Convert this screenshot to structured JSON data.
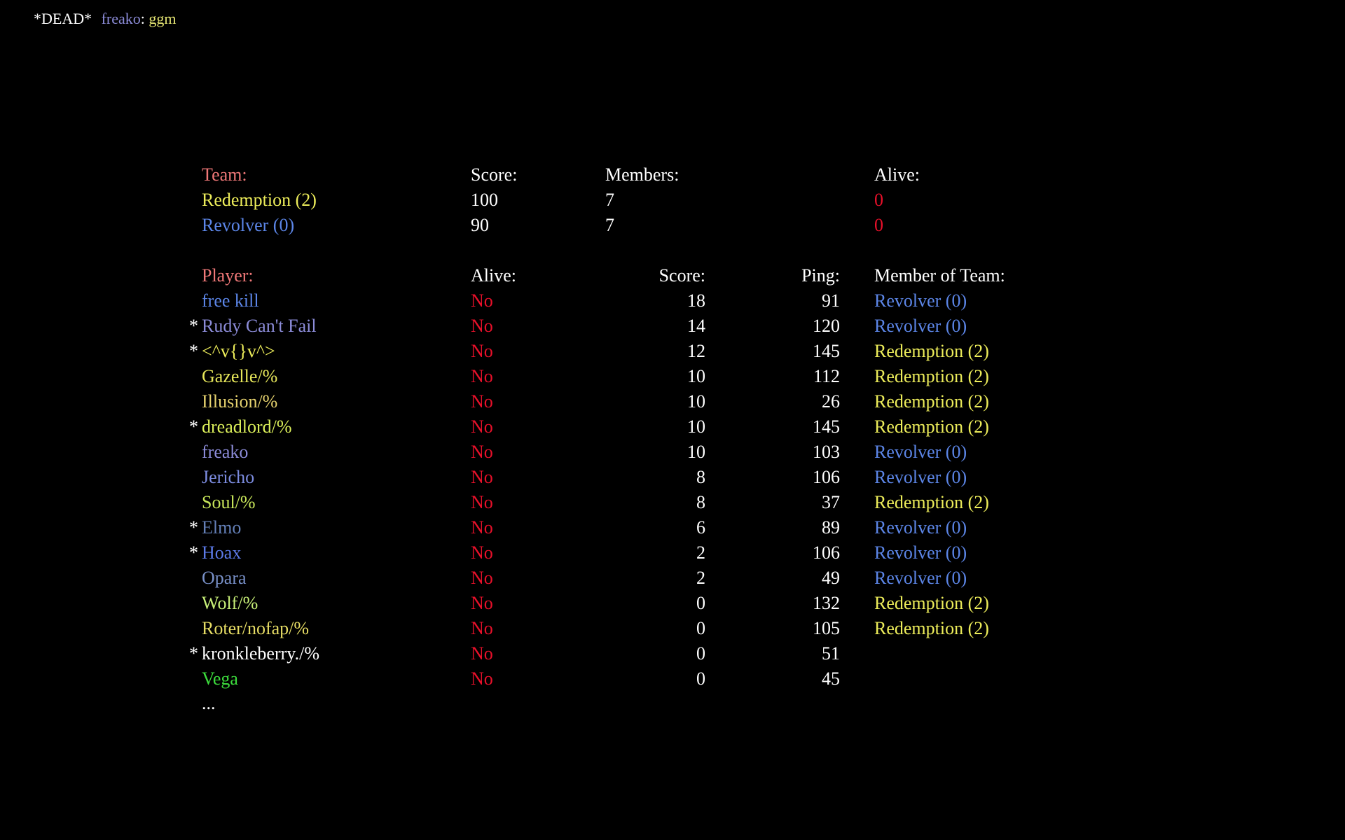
{
  "chat": {
    "status": "*DEAD*",
    "author": "freako",
    "separator": ":",
    "message": "ggm"
  },
  "colors": {
    "background": "#000000",
    "header_accent": "#f07878",
    "dead_red": "#e8102a",
    "team_redemption": "#eded5a",
    "team_revolver": "#5c86e8"
  },
  "team_table": {
    "headers": {
      "team": "Team:",
      "score": "Score:",
      "members": "Members:",
      "alive": "Alive:"
    },
    "rows": [
      {
        "name": "Redemption (2)",
        "score": "100",
        "members": "7",
        "alive": "0",
        "color": "#eded5a"
      },
      {
        "name": "Revolver (0)",
        "score": "90",
        "members": "7",
        "alive": "0",
        "color": "#5c86e8"
      }
    ]
  },
  "player_table": {
    "headers": {
      "player": "Player:",
      "alive": "Alive:",
      "score": "Score:",
      "ping": "Ping:",
      "team": "Member of Team:"
    },
    "rows": [
      {
        "mark": "",
        "name": "free kill",
        "name_color": "#5c86e8",
        "alive": "No",
        "score": "18",
        "ping": "91",
        "team": "Revolver (0)",
        "team_color": "#5c86e8"
      },
      {
        "mark": "*",
        "name": "Rudy Can't Fail",
        "name_color": "#8c8cd9",
        "alive": "No",
        "score": "14",
        "ping": "120",
        "team": "Revolver (0)",
        "team_color": "#5c86e8"
      },
      {
        "mark": "*",
        "name": "<^v{}v^>",
        "name_color": "#eded5a",
        "alive": "No",
        "score": "12",
        "ping": "145",
        "team": "Redemption (2)",
        "team_color": "#eded5a"
      },
      {
        "mark": "",
        "name": "Gazelle/%",
        "name_color": "#e6e65a",
        "alive": "No",
        "score": "10",
        "ping": "112",
        "team": "Redemption (2)",
        "team_color": "#eded5a"
      },
      {
        "mark": "",
        "name": "Illusion/%",
        "name_color": "#e6d26e",
        "alive": "No",
        "score": "10",
        "ping": "26",
        "team": "Redemption (2)",
        "team_color": "#eded5a"
      },
      {
        "mark": "*",
        "name": "dreadlord/%",
        "name_color": "#dcf05a",
        "alive": "No",
        "score": "10",
        "ping": "145",
        "team": "Redemption (2)",
        "team_color": "#eded5a"
      },
      {
        "mark": "",
        "name": "freako",
        "name_color": "#8c8cd9",
        "alive": "No",
        "score": "10",
        "ping": "103",
        "team": "Revolver (0)",
        "team_color": "#5c86e8"
      },
      {
        "mark": "",
        "name": "Jericho",
        "name_color": "#7c8ce0",
        "alive": "No",
        "score": "8",
        "ping": "106",
        "team": "Revolver (0)",
        "team_color": "#5c86e8"
      },
      {
        "mark": "",
        "name": "Soul/%",
        "name_color": "#c8e65a",
        "alive": "No",
        "score": "8",
        "ping": "37",
        "team": "Redemption (2)",
        "team_color": "#eded5a"
      },
      {
        "mark": "*",
        "name": "Elmo",
        "name_color": "#6480b8",
        "alive": "No",
        "score": "6",
        "ping": "89",
        "team": "Revolver (0)",
        "team_color": "#5c86e8"
      },
      {
        "mark": "*",
        "name": "Hoax",
        "name_color": "#5c7ae8",
        "alive": "No",
        "score": "2",
        "ping": "106",
        "team": "Revolver (0)",
        "team_color": "#5c86e8"
      },
      {
        "mark": "",
        "name": "Opara",
        "name_color": "#7890c8",
        "alive": "No",
        "score": "2",
        "ping": "49",
        "team": "Revolver (0)",
        "team_color": "#5c86e8"
      },
      {
        "mark": "",
        "name": "Wolf/%",
        "name_color": "#c8f078",
        "alive": "No",
        "score": "0",
        "ping": "132",
        "team": "Redemption (2)",
        "team_color": "#eded5a"
      },
      {
        "mark": "",
        "name": "Roter/nofap/%",
        "name_color": "#e6dc64",
        "alive": "No",
        "score": "0",
        "ping": "105",
        "team": "Redemption (2)",
        "team_color": "#eded5a"
      },
      {
        "mark": "*",
        "name": "kronkleberry./%",
        "name_color": "#ffffff",
        "alive": "No",
        "score": "0",
        "ping": "51",
        "team": "",
        "team_color": "#ffffff"
      },
      {
        "mark": "",
        "name": "Vega",
        "name_color": "#3cdc3c",
        "alive": "No",
        "score": "0",
        "ping": "45",
        "team": "",
        "team_color": "#ffffff"
      }
    ],
    "more": "..."
  }
}
